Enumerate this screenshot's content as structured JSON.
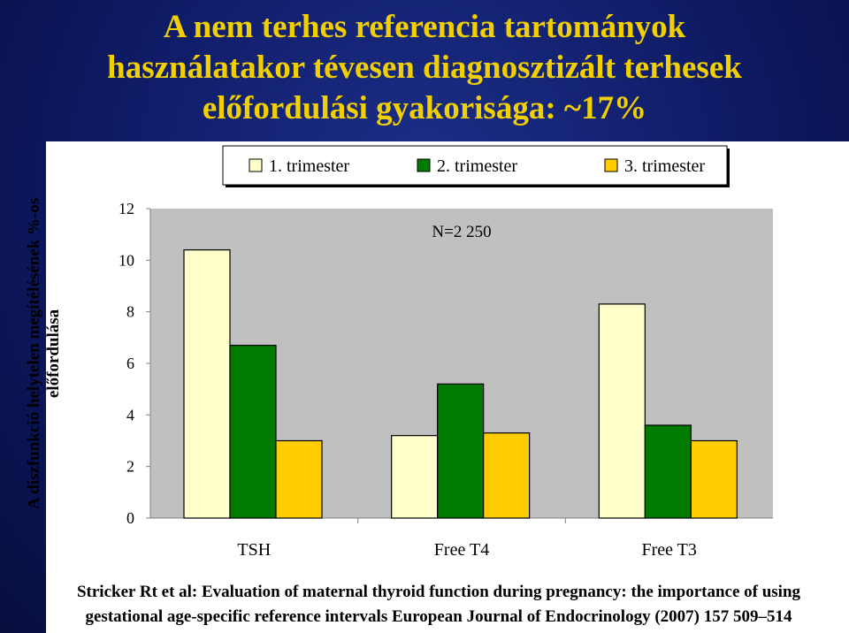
{
  "title": {
    "line1": "A nem terhes referencia tartományok",
    "line2": "használatakor tévesen diagnosztizált terhesek",
    "line3": "előfordulási gyakorisága: ~17%"
  },
  "citation": {
    "line1": "Stricker Rt et al: Evaluation of maternal thyroid function during pregnancy: the importance of using",
    "line2": "gestational age-specific reference intervals European Journal of Endocrinology (2007) 157 509–514"
  },
  "chart_data": {
    "type": "bar",
    "categories": [
      "TSH",
      "Free T4",
      "Free T3"
    ],
    "series": [
      {
        "name": "1. trimester",
        "values": [
          10.4,
          3.2,
          8.3
        ],
        "color": "#ffffcc"
      },
      {
        "name": "2. trimester",
        "values": [
          6.7,
          5.2,
          3.6
        ],
        "color": "#007a00"
      },
      {
        "name": "3. trimester",
        "values": [
          3.0,
          3.3,
          3.0
        ],
        "color": "#ffcc00"
      }
    ],
    "ylabel": "A diszfunkció helytelen megítélésének %-os előfordulása",
    "ylim": [
      0,
      12
    ],
    "yticks": [
      "0",
      "2",
      "4",
      "6",
      "8",
      "10",
      "12"
    ],
    "annotation": "N=2 250",
    "plot_background": "#c0c0c0",
    "legend_position": "top"
  }
}
